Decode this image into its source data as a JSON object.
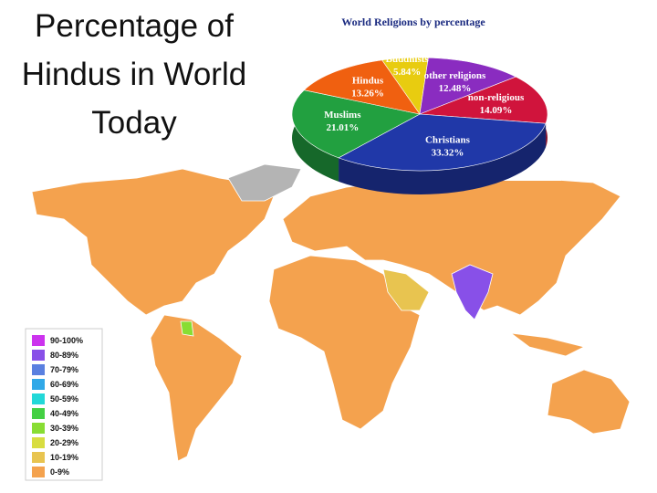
{
  "slide": {
    "title": "Percentage of Hindus in World Today"
  },
  "chart_data": {
    "type": "pie",
    "title": "World Religions by percentage",
    "categories": [
      "Buddhists",
      "other religions",
      "non-religious",
      "Christians",
      "Muslims",
      "Hindus"
    ],
    "values": [
      5.84,
      12.48,
      14.09,
      33.32,
      21.01,
      13.26
    ],
    "value_labels": [
      "5.84%",
      "12.48%",
      "14.09%",
      "33.32%",
      "21.01%",
      "13.26%"
    ],
    "colors": [
      "#e8cc10",
      "#8a2cc0",
      "#d0143c",
      "#2038a8",
      "#22a040",
      "#f06010"
    ]
  },
  "map": {
    "legend": [
      {
        "label": "90-100%",
        "color": "#cc33ee"
      },
      {
        "label": "80-89%",
        "color": "#8850e8"
      },
      {
        "label": "70-79%",
        "color": "#5a80e0"
      },
      {
        "label": "60-69%",
        "color": "#30a8e8"
      },
      {
        "label": "50-59%",
        "color": "#22d8d8"
      },
      {
        "label": "40-49%",
        "color": "#44d044"
      },
      {
        "label": "30-39%",
        "color": "#88dd33"
      },
      {
        "label": "20-29%",
        "color": "#d8dd40"
      },
      {
        "label": "10-19%",
        "color": "#e8c450"
      },
      {
        "label": "0-9%",
        "color": "#f4a24e"
      }
    ]
  }
}
